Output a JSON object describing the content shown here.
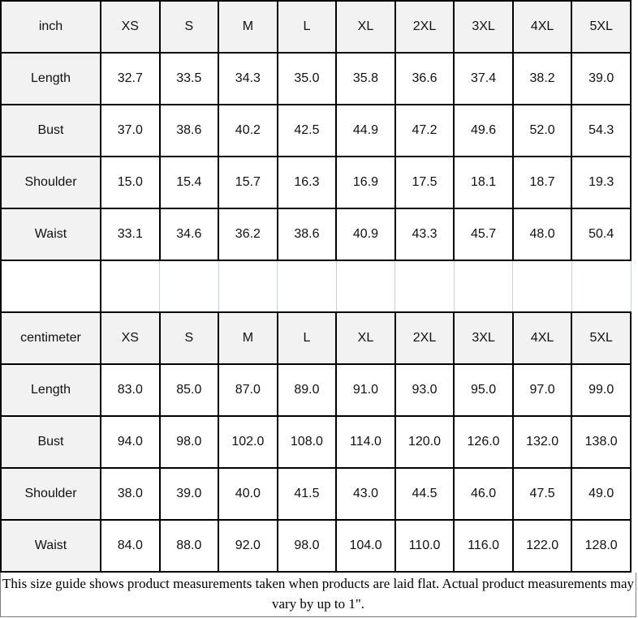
{
  "sections": [
    {
      "unit_label": "inch",
      "sizes": [
        "XS",
        "S",
        "M",
        "L",
        "XL",
        "2XL",
        "3XL",
        "4XL",
        "5XL"
      ],
      "rows": [
        {
          "label": "Length",
          "values": [
            "32.7",
            "33.5",
            "34.3",
            "35.0",
            "35.8",
            "36.6",
            "37.4",
            "38.2",
            "39.0"
          ]
        },
        {
          "label": "Bust",
          "values": [
            "37.0",
            "38.6",
            "40.2",
            "42.5",
            "44.9",
            "47.2",
            "49.6",
            "52.0",
            "54.3"
          ]
        },
        {
          "label": "Shoulder",
          "values": [
            "15.0",
            "15.4",
            "15.7",
            "16.3",
            "16.9",
            "17.5",
            "18.1",
            "18.7",
            "19.3"
          ]
        },
        {
          "label": "Waist",
          "values": [
            "33.1",
            "34.6",
            "36.2",
            "38.6",
            "40.9",
            "43.3",
            "45.7",
            "48.0",
            "50.4"
          ]
        }
      ]
    },
    {
      "unit_label": "centimeter",
      "sizes": [
        "XS",
        "S",
        "M",
        "L",
        "XL",
        "2XL",
        "3XL",
        "4XL",
        "5XL"
      ],
      "rows": [
        {
          "label": "Length",
          "values": [
            "83.0",
            "85.0",
            "87.0",
            "89.0",
            "91.0",
            "93.0",
            "95.0",
            "97.0",
            "99.0"
          ]
        },
        {
          "label": "Bust",
          "values": [
            "94.0",
            "98.0",
            "102.0",
            "108.0",
            "114.0",
            "120.0",
            "126.0",
            "132.0",
            "138.0"
          ]
        },
        {
          "label": "Shoulder",
          "values": [
            "38.0",
            "39.0",
            "40.0",
            "41.5",
            "43.0",
            "44.5",
            "46.0",
            "47.5",
            "49.0"
          ]
        },
        {
          "label": "Waist",
          "values": [
            "84.0",
            "88.0",
            "92.0",
            "98.0",
            "104.0",
            "110.0",
            "116.0",
            "122.0",
            "128.0"
          ]
        }
      ]
    }
  ],
  "footer": {
    "note": "This size guide shows product measurements taken when products are laid flat. Actual product measurements may vary by up to 1\"."
  },
  "colors": {
    "header_bg": "#f2f2f2",
    "cell_border": "#000000",
    "spacer_gridline": "#c9d2db",
    "text": "#111111",
    "footer_border": "#7a7a7a"
  }
}
